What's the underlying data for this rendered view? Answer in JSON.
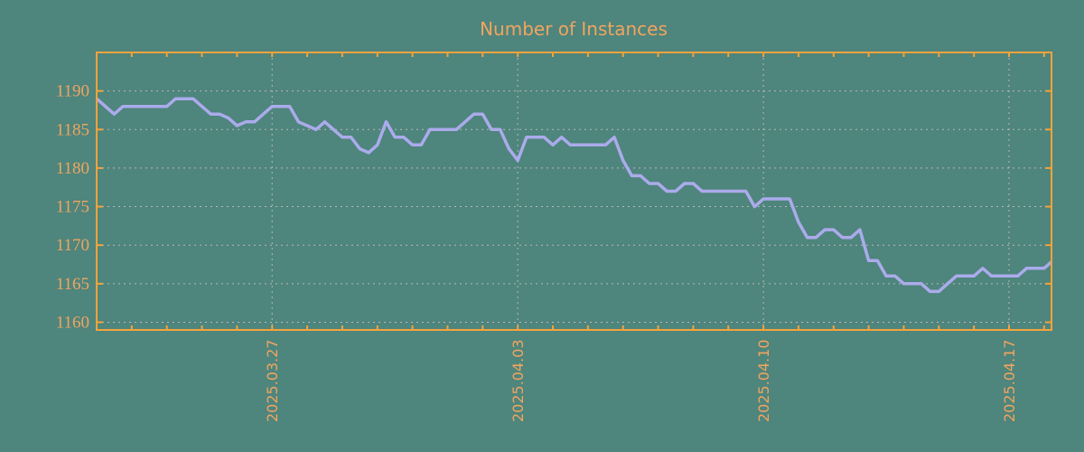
{
  "colors": {
    "background": "#4e857d",
    "text": "#f0a55f",
    "frame": "#f5a33c",
    "grid": "#b9b9b9",
    "line": "#ababeb"
  },
  "chart_data": {
    "type": "line",
    "title": "Number of Instances",
    "xlabel": "",
    "ylabel": "",
    "legend": "none",
    "grid": "dashed",
    "ylim": [
      1159,
      1195
    ],
    "y_ticks": [
      1160,
      1165,
      1170,
      1175,
      1180,
      1185,
      1190
    ],
    "x_tick_labels": [
      "2025.03.27",
      "2025.04.03",
      "2025.04.10",
      "2025.04.17"
    ],
    "x_tick_sample_index": [
      20,
      48,
      76,
      104
    ],
    "samples_per_day": 4,
    "minor_tick_every_days": 1,
    "series": [
      {
        "name": "instances",
        "values": [
          1189,
          1188,
          1187,
          1188,
          1188,
          1188,
          1188,
          1188,
          1188,
          1189,
          1189,
          1189,
          1188,
          1187,
          1187,
          1186.5,
          1185.5,
          1186,
          1186,
          1187,
          1188,
          1188,
          1188,
          1186,
          1185.5,
          1185,
          1186,
          1185,
          1184,
          1184,
          1182.5,
          1182,
          1183,
          1186,
          1184,
          1184,
          1183,
          1183,
          1185,
          1185,
          1185,
          1185,
          1186,
          1187,
          1187,
          1185,
          1185,
          1182.5,
          1181,
          1184,
          1184,
          1184,
          1183,
          1184,
          1183,
          1183,
          1183,
          1183,
          1183,
          1184,
          1181,
          1179,
          1179,
          1178,
          1178,
          1177,
          1177,
          1178,
          1178,
          1177,
          1177,
          1177,
          1177,
          1177,
          1177,
          1175,
          1176,
          1176,
          1176,
          1176,
          1173,
          1171,
          1171,
          1172,
          1172,
          1171,
          1171,
          1172,
          1168,
          1168,
          1166,
          1166,
          1165,
          1165,
          1165,
          1164,
          1164,
          1165,
          1166,
          1166,
          1166,
          1167,
          1166,
          1166,
          1166,
          1166,
          1167,
          1167,
          1167,
          1168
        ]
      }
    ]
  }
}
